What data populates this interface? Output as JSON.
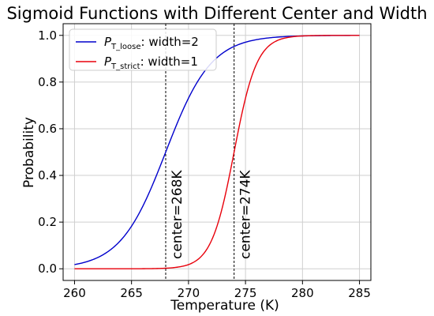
{
  "chart_data": {
    "type": "line",
    "title": "Sigmoid Functions with Different Center and Width",
    "xlabel": "Temperature (K)",
    "ylabel": "Probability",
    "xlim": [
      259,
      286
    ],
    "ylim": [
      -0.05,
      1.05
    ],
    "xticks": [
      "260",
      "265",
      "270",
      "275",
      "280",
      "285"
    ],
    "yticks": [
      "0.0",
      "0.2",
      "0.4",
      "0.6",
      "0.8",
      "1.0"
    ],
    "grid": true,
    "legend_position": "top-left",
    "x_range": [
      260,
      285
    ],
    "series": [
      {
        "name": "P_T_loose: width=2",
        "legend_main": "P",
        "legend_sub": "T_loose",
        "legend_rest": ":  width=2",
        "color": "#0000cc",
        "center": 268,
        "width": 2
      },
      {
        "name": "P_T_strict: width=1",
        "legend_main": "P",
        "legend_sub": "T_strict",
        "legend_rest": ":  width=1",
        "color": "#e8000b",
        "center": 274,
        "width": 1
      }
    ],
    "vlines": [
      {
        "x": 268,
        "label": "center=268K"
      },
      {
        "x": 274,
        "label": "center=274K"
      }
    ]
  }
}
